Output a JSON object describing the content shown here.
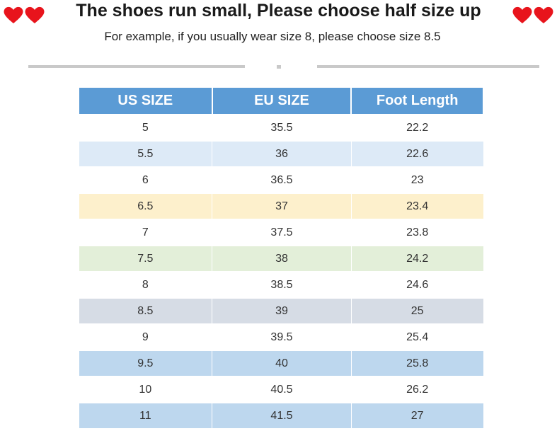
{
  "header": {
    "title": "The shoes run small, Please choose half size up",
    "subtitle": "For example, if you usually wear size 8, please choose size 8.5",
    "decor_icon": "heart-icon",
    "heart_color": "#e8141c"
  },
  "table": {
    "header_color": "#5b9bd5",
    "columns": [
      "US SIZE",
      "EU SIZE",
      "Foot Length"
    ],
    "rows": [
      {
        "us": "5",
        "eu": "35.5",
        "foot": "22.2",
        "color": "#ffffff"
      },
      {
        "us": "5.5",
        "eu": "36",
        "foot": "22.6",
        "color": "#ddeaf7"
      },
      {
        "us": "6",
        "eu": "36.5",
        "foot": "23",
        "color": "#ffffff"
      },
      {
        "us": "6.5",
        "eu": "37",
        "foot": "23.4",
        "color": "#fdf0cc"
      },
      {
        "us": "7",
        "eu": "37.5",
        "foot": "23.8",
        "color": "#ffffff"
      },
      {
        "us": "7.5",
        "eu": "38",
        "foot": "24.2",
        "color": "#e3efd9"
      },
      {
        "us": "8",
        "eu": "38.5",
        "foot": "24.6",
        "color": "#ffffff"
      },
      {
        "us": "8.5",
        "eu": "39",
        "foot": "25",
        "color": "#d6dce5"
      },
      {
        "us": "9",
        "eu": "39.5",
        "foot": "25.4",
        "color": "#ffffff"
      },
      {
        "us": "9.5",
        "eu": "40",
        "foot": "25.8",
        "color": "#bdd7ee"
      },
      {
        "us": "10",
        "eu": "40.5",
        "foot": "26.2",
        "color": "#ffffff"
      },
      {
        "us": "11",
        "eu": "41.5",
        "foot": "27",
        "color": "#bdd7ee"
      }
    ]
  }
}
